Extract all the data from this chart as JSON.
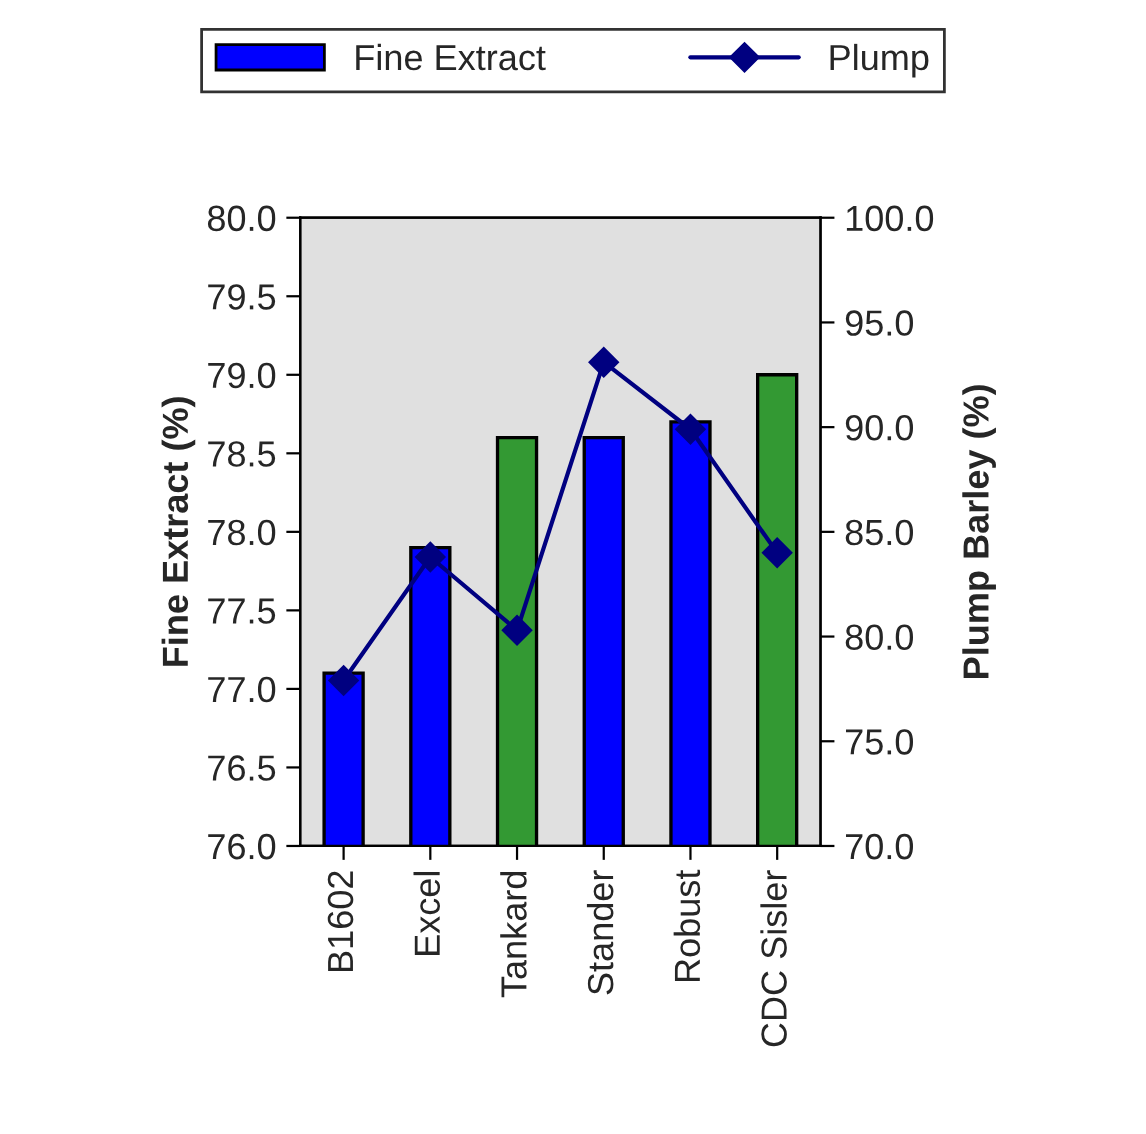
{
  "chart_data": {
    "type": "bar",
    "categories": [
      "B1602",
      "Excel",
      "Tankard",
      "Stander",
      "Robust",
      "CDC Sisler"
    ],
    "xlabel": null,
    "ylabel": "Fine Extract (%)",
    "y2label": "Plump Barley (%)",
    "series": [
      {
        "name": "Fine Extract",
        "values": [
          77.1,
          77.9,
          78.6,
          78.6,
          78.7,
          79.0
        ],
        "colors": [
          "#0000ff",
          "#0000ff",
          "#339933",
          "#0000ff",
          "#0000ff",
          "#339933"
        ]
      },
      {
        "name": "Plump",
        "type": "line",
        "axis": "y2",
        "color": "#000080",
        "marker": "diamond",
        "values": [
          77.9,
          83.8,
          80.3,
          93.1,
          89.9,
          84.0
        ]
      }
    ],
    "ylim": [
      76.0,
      80.0
    ],
    "yticks": [
      {
        "value": 76,
        "label": "76.0"
      },
      {
        "value": 76.5,
        "label": "76.5"
      },
      {
        "value": 77,
        "label": "77.0"
      },
      {
        "value": 77.5,
        "label": "77.5"
      },
      {
        "value": 78,
        "label": "78.0"
      },
      {
        "value": 78.5,
        "label": "78.5"
      },
      {
        "value": 79,
        "label": "79.0"
      },
      {
        "value": 79.5,
        "label": "79.5"
      },
      {
        "value": 80,
        "label": "80.0"
      }
    ],
    "y2lim": [
      70.0,
      100.0
    ],
    "y2ticks": [
      {
        "value": 70,
        "label": "70.0"
      },
      {
        "value": 75,
        "label": "75.0"
      },
      {
        "value": 80,
        "label": "80.0"
      },
      {
        "value": 85,
        "label": "85.0"
      },
      {
        "value": 90,
        "label": "90.0"
      },
      {
        "value": 95,
        "label": "95.0"
      },
      {
        "value": 100,
        "label": "100.0"
      }
    ],
    "legend": "top",
    "grid": false
  }
}
